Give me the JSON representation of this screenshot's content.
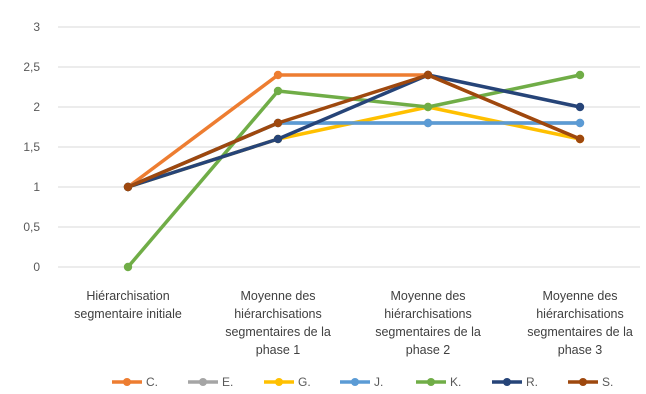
{
  "chart_data": {
    "type": "line",
    "categories": [
      [
        "Hiérarchisation",
        "segmentaire initiale"
      ],
      [
        "Moyenne des",
        "hiérarchisations",
        "segmentaires de la",
        "phase 1"
      ],
      [
        "Moyenne des",
        "hiérarchisations",
        "segmentaires de la",
        "phase 2"
      ],
      [
        "Moyenne des",
        "hiérarchisations",
        "segmentaires de la",
        "phase 3"
      ]
    ],
    "y_ticks": [
      "0",
      "0,5",
      "1",
      "1,5",
      "2",
      "2,5",
      "3"
    ],
    "ylim": [
      0,
      3
    ],
    "grid": true,
    "legend_position": "bottom",
    "series": [
      {
        "name": "C.",
        "color": "#ED7D31",
        "values": [
          1.0,
          2.4,
          2.4,
          1.6
        ]
      },
      {
        "name": "E.",
        "color": "#A5A5A5",
        "values": [
          1.0,
          1.8,
          1.8,
          1.8
        ]
      },
      {
        "name": "G.",
        "color": "#FFC000",
        "values": [
          1.0,
          1.6,
          2.0,
          1.6
        ]
      },
      {
        "name": "J.",
        "color": "#5B9BD5",
        "values": [
          1.0,
          1.8,
          1.8,
          1.8
        ]
      },
      {
        "name": "K.",
        "color": "#70AD47",
        "values": [
          0.0,
          2.2,
          2.0,
          2.4
        ]
      },
      {
        "name": "R.",
        "color": "#264478",
        "values": [
          1.0,
          1.6,
          2.4,
          2.0
        ]
      },
      {
        "name": "S.",
        "color": "#9E480E",
        "values": [
          1.0,
          1.8,
          2.4,
          1.6
        ]
      }
    ]
  }
}
